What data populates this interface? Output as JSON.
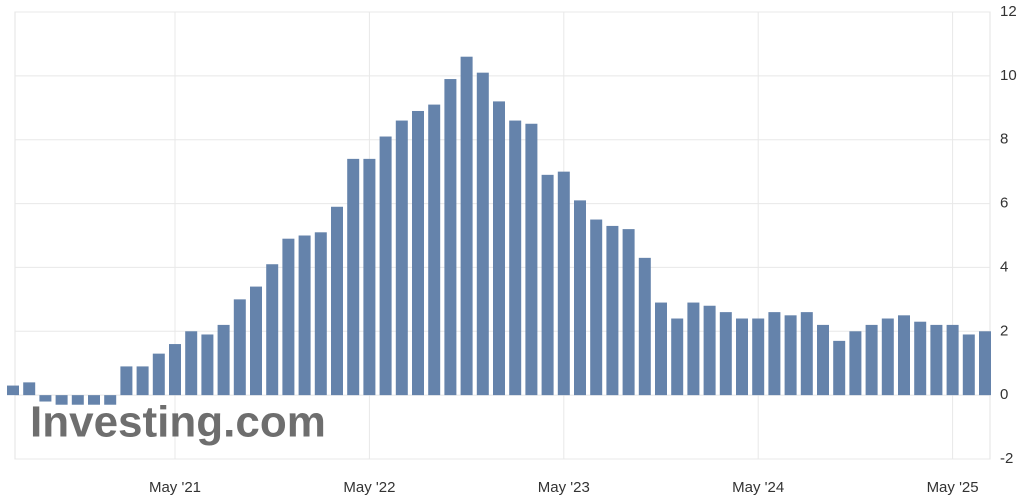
{
  "chart_data": {
    "type": "bar",
    "watermark": "Investing.com",
    "categories": [
      null,
      null,
      null,
      null,
      null,
      null,
      null,
      null,
      null,
      null,
      "May '21",
      null,
      null,
      null,
      null,
      null,
      null,
      null,
      null,
      null,
      null,
      null,
      "May '22",
      null,
      null,
      null,
      null,
      null,
      null,
      null,
      null,
      null,
      null,
      null,
      "May '23",
      null,
      null,
      null,
      null,
      null,
      null,
      null,
      null,
      null,
      null,
      null,
      "May '24",
      null,
      null,
      null,
      null,
      null,
      null,
      null,
      null,
      null,
      null,
      null,
      "May '25",
      null,
      null
    ],
    "values": [
      0.3,
      0.4,
      -0.2,
      -0.3,
      -0.3,
      -0.3,
      -0.3,
      0.9,
      0.9,
      1.3,
      1.6,
      2.0,
      1.9,
      2.2,
      3.0,
      3.4,
      4.1,
      4.9,
      5.0,
      5.1,
      5.9,
      7.4,
      7.4,
      8.1,
      8.6,
      8.9,
      9.1,
      9.9,
      10.6,
      10.1,
      9.2,
      8.6,
      8.5,
      6.9,
      7.0,
      6.1,
      5.5,
      5.3,
      5.2,
      4.3,
      2.9,
      2.4,
      2.9,
      2.8,
      2.6,
      2.4,
      2.4,
      2.6,
      2.5,
      2.6,
      2.2,
      1.7,
      2.0,
      2.2,
      2.4,
      2.5,
      2.3,
      2.2,
      2.2,
      1.9,
      2.0
    ],
    "color": "#6583ab",
    "ylim": [
      -2,
      12
    ],
    "yticks": [
      -2,
      0,
      2,
      4,
      6,
      8,
      10,
      12
    ],
    "grid": true
  }
}
